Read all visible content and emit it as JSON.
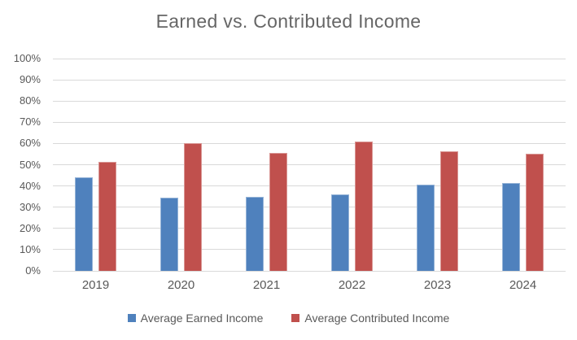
{
  "chart_data": {
    "type": "bar",
    "title": "Earned vs. Contributed Income",
    "categories": [
      "2019",
      "2020",
      "2021",
      "2022",
      "2023",
      "2024"
    ],
    "series": [
      {
        "name": "Average Earned Income",
        "color": "#4F81BD",
        "border_color": "#95B3D7",
        "values": [
          44,
          34.5,
          35,
          36,
          40.5,
          41.5
        ]
      },
      {
        "name": "Average Contributed Income",
        "color": "#C0504D",
        "border_color": "#D99694",
        "values": [
          51.5,
          60,
          55.5,
          61,
          56.5,
          55
        ]
      }
    ],
    "xlabel": "",
    "ylabel": "",
    "ylim": [
      0,
      100
    ],
    "y_tick_step": 10,
    "y_ticks": [
      "0%",
      "10%",
      "20%",
      "30%",
      "40%",
      "50%",
      "60%",
      "70%",
      "80%",
      "90%",
      "100%"
    ],
    "grid": true,
    "legend_position": "bottom",
    "gridline_color": "#D9D9D9",
    "text_color": "#595959",
    "title_color": "#666666",
    "background_color": "#FFFFFF"
  }
}
